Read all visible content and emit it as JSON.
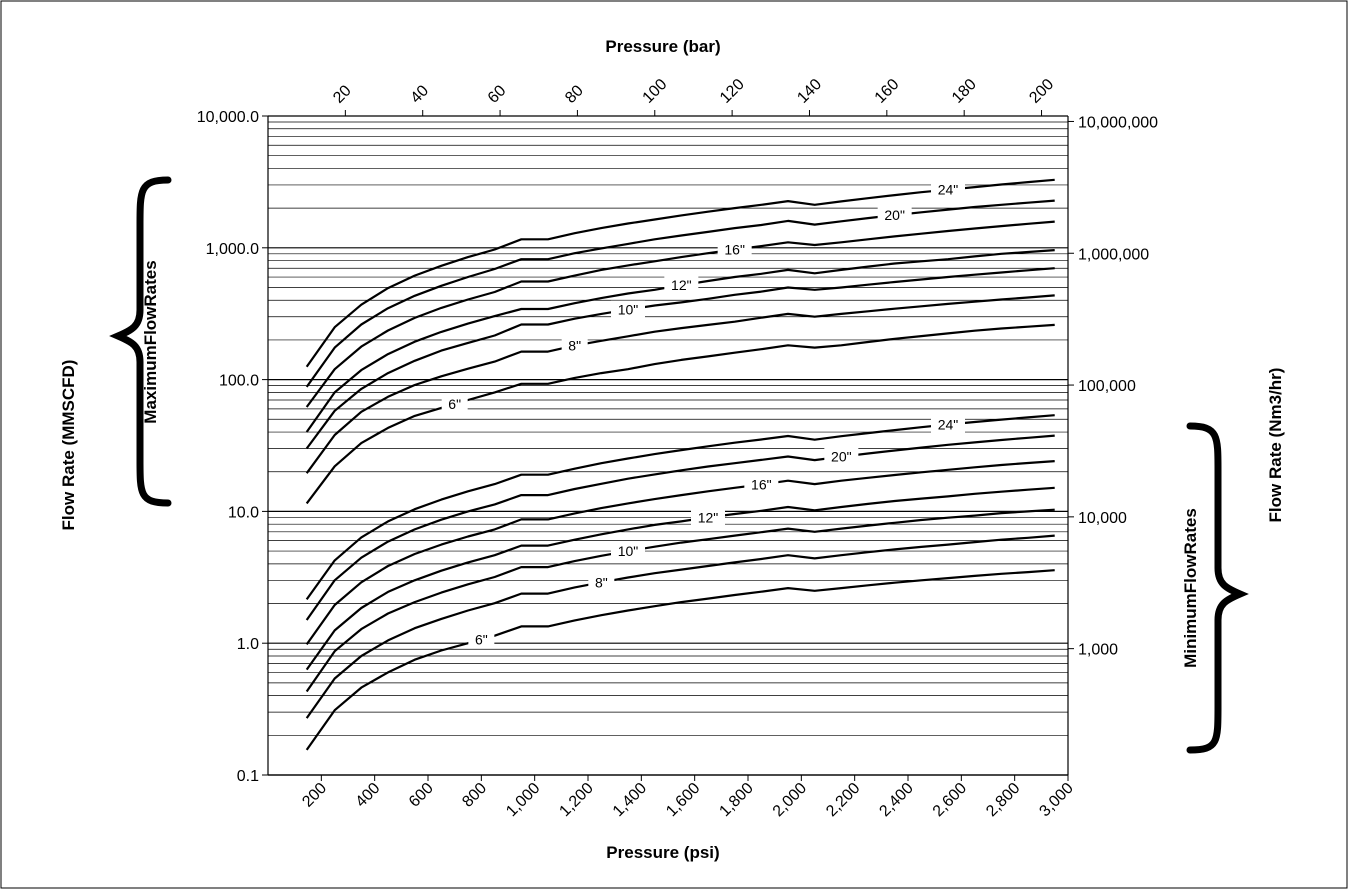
{
  "chart_data": {
    "type": "line",
    "x_scale": "linear",
    "y_scale": "log",
    "xlim": [
      0,
      3000
    ],
    "ylim": [
      0.1,
      10000
    ],
    "xlabel": "Pressure (psi)",
    "x2label": "Pressure (bar)",
    "ylabel": "Flow Rate (MMSCFD)",
    "y2label": "Flow Rate (Nm3/hr)",
    "group_labels": {
      "max": "MaximumFlowRates",
      "min": "MinimumFlowRates"
    },
    "x_ticks": [
      200,
      400,
      600,
      800,
      1000,
      1200,
      1400,
      1600,
      1800,
      2000,
      2200,
      2400,
      2600,
      2800,
      3000
    ],
    "x_tick_labels": [
      "200",
      "400",
      "600",
      "800",
      "1,000",
      "1,200",
      "1,400",
      "1,600",
      "1,800",
      "2,000",
      "2,200",
      "2,400",
      "2,600",
      "2,800",
      "3,000"
    ],
    "x2_ticks": [
      20,
      40,
      60,
      80,
      100,
      120,
      140,
      160,
      180,
      200
    ],
    "x2_tick_labels": [
      "20",
      "40",
      "60",
      "80",
      "100",
      "120",
      "140",
      "160",
      "180",
      "200"
    ],
    "y_ticks": [
      0.1,
      1,
      10,
      100,
      1000,
      10000
    ],
    "y_tick_labels": [
      "0.1",
      "1.0",
      "10.0",
      "100.0",
      "1,000.0",
      "10,000.0"
    ],
    "y2_ticks": [
      1000,
      10000,
      100000,
      1000000,
      10000000
    ],
    "y2_tick_labels": [
      "1,000",
      "10,000",
      "100,000",
      "1,000,000",
      "10,000,000"
    ],
    "x": [
      145,
      250,
      350,
      450,
      550,
      650,
      750,
      850,
      950,
      1050,
      1150,
      1250,
      1350,
      1450,
      1550,
      1650,
      1750,
      1850,
      1950,
      2050,
      2150,
      2250,
      2350,
      2450,
      2550,
      2650,
      2750,
      2850,
      2950
    ],
    "series": [
      {
        "group": "max",
        "name": "6\"",
        "label_x": 700,
        "values": [
          11.5,
          22,
          33,
          43,
          53,
          61,
          70,
          80,
          93,
          93,
          103,
          112,
          120,
          131,
          141,
          150,
          160,
          170,
          182,
          175,
          182,
          193,
          204,
          214,
          224,
          235,
          244,
          252,
          260
        ]
      },
      {
        "group": "max",
        "name": "8\"",
        "label_x": 1150,
        "values": [
          19.5,
          38,
          57,
          74,
          91,
          106,
          121,
          137,
          163,
          163,
          181,
          197,
          213,
          231,
          246,
          260,
          275,
          295,
          315,
          300,
          315,
          330,
          345,
          360,
          375,
          390,
          405,
          420,
          435
        ]
      },
      {
        "group": "max",
        "name": "10\"",
        "label_x": 1350,
        "values": [
          30,
          58,
          85,
          112,
          139,
          166,
          190,
          216,
          262,
          262,
          290,
          315,
          340,
          365,
          385,
          410,
          440,
          465,
          500,
          480,
          500,
          525,
          550,
          575,
          600,
          625,
          650,
          675,
          700
        ]
      },
      {
        "group": "max",
        "name": "12\"",
        "label_x": 1550,
        "values": [
          40,
          80,
          118,
          156,
          194,
          230,
          266,
          303,
          343,
          343,
          380,
          415,
          450,
          480,
          520,
          560,
          600,
          635,
          680,
          640,
          680,
          720,
          760,
          790,
          820,
          860,
          900,
          930,
          960
        ]
      },
      {
        "group": "max",
        "name": "16\"",
        "label_x": 1750,
        "values": [
          62,
          120,
          178,
          236,
          294,
          350,
          405,
          462,
          555,
          555,
          615,
          680,
          735,
          790,
          850,
          910,
          970,
          1030,
          1100,
          1050,
          1100,
          1160,
          1220,
          1280,
          1340,
          1400,
          1460,
          1520,
          1580
        ]
      },
      {
        "group": "max",
        "name": "20\"",
        "label_x": 2350,
        "values": [
          88,
          175,
          262,
          348,
          432,
          515,
          600,
          690,
          820,
          820,
          910,
          990,
          1070,
          1160,
          1240,
          1320,
          1410,
          1490,
          1600,
          1500,
          1590,
          1680,
          1770,
          1860,
          1950,
          2040,
          2120,
          2200,
          2280
        ]
      },
      {
        "group": "max",
        "name": "24\"",
        "label_x": 2550,
        "values": [
          125,
          250,
          370,
          495,
          615,
          730,
          850,
          970,
          1160,
          1160,
          1290,
          1410,
          1530,
          1640,
          1760,
          1880,
          2000,
          2120,
          2260,
          2120,
          2250,
          2380,
          2510,
          2640,
          2760,
          2890,
          3020,
          3150,
          3280
        ]
      },
      {
        "group": "min",
        "name": "6\"",
        "label_x": 800,
        "values": [
          0.155,
          0.31,
          0.46,
          0.6,
          0.75,
          0.88,
          1.0,
          1.14,
          1.34,
          1.34,
          1.49,
          1.63,
          1.77,
          1.91,
          2.05,
          2.18,
          2.32,
          2.46,
          2.62,
          2.5,
          2.62,
          2.75,
          2.88,
          3.0,
          3.12,
          3.24,
          3.36,
          3.46,
          3.58
        ]
      },
      {
        "group": "min",
        "name": "8\"",
        "label_x": 1250,
        "values": [
          0.27,
          0.54,
          0.8,
          1.05,
          1.3,
          1.53,
          1.77,
          2.01,
          2.38,
          2.38,
          2.65,
          2.9,
          3.15,
          3.4,
          3.62,
          3.85,
          4.1,
          4.35,
          4.65,
          4.4,
          4.65,
          4.9,
          5.15,
          5.38,
          5.6,
          5.85,
          6.1,
          6.3,
          6.55
        ]
      },
      {
        "group": "min",
        "name": "10\"",
        "label_x": 1350,
        "values": [
          0.43,
          0.87,
          1.28,
          1.68,
          2.05,
          2.42,
          2.8,
          3.18,
          3.78,
          3.78,
          4.2,
          4.6,
          5.0,
          5.4,
          5.8,
          6.15,
          6.55,
          6.95,
          7.4,
          7.0,
          7.4,
          7.8,
          8.2,
          8.6,
          8.95,
          9.3,
          9.7,
          10.0,
          10.3
        ]
      },
      {
        "group": "min",
        "name": "12\"",
        "label_x": 1650,
        "values": [
          0.63,
          1.25,
          1.85,
          2.45,
          3.0,
          3.55,
          4.1,
          4.65,
          5.5,
          5.5,
          6.1,
          6.7,
          7.3,
          7.9,
          8.4,
          9.0,
          9.55,
          10.1,
          10.8,
          10.2,
          10.8,
          11.4,
          12.0,
          12.5,
          13.0,
          13.6,
          14.1,
          14.6,
          15.1
        ]
      },
      {
        "group": "min",
        "name": "16\"",
        "label_x": 1850,
        "values": [
          0.98,
          1.95,
          2.9,
          3.85,
          4.75,
          5.6,
          6.45,
          7.3,
          8.7,
          8.7,
          9.65,
          10.6,
          11.5,
          12.4,
          13.3,
          14.2,
          15.1,
          16.0,
          17.1,
          16.1,
          17.1,
          18.0,
          18.9,
          19.8,
          20.7,
          21.6,
          22.5,
          23.3,
          24.1
        ]
      },
      {
        "group": "min",
        "name": "20\"",
        "label_x": 2150,
        "values": [
          1.5,
          3.0,
          4.45,
          5.9,
          7.3,
          8.65,
          10.0,
          11.3,
          13.3,
          13.3,
          14.8,
          16.2,
          17.7,
          19.1,
          20.5,
          21.9,
          23.2,
          24.6,
          26.1,
          24.5,
          26.0,
          27.5,
          29.0,
          30.5,
          32.0,
          33.4,
          34.8,
          36.2,
          37.6
        ]
      },
      {
        "group": "min",
        "name": "24\"",
        "label_x": 2550,
        "values": [
          2.15,
          4.25,
          6.35,
          8.4,
          10.4,
          12.3,
          14.2,
          16.1,
          19.0,
          19.0,
          21.1,
          23.2,
          25.2,
          27.2,
          29.2,
          31.2,
          33.2,
          35.1,
          37.3,
          35.0,
          37.2,
          39.3,
          41.4,
          43.5,
          45.6,
          47.7,
          49.7,
          51.7,
          53.7
        ]
      }
    ],
    "grid": true,
    "legend": "inline"
  }
}
